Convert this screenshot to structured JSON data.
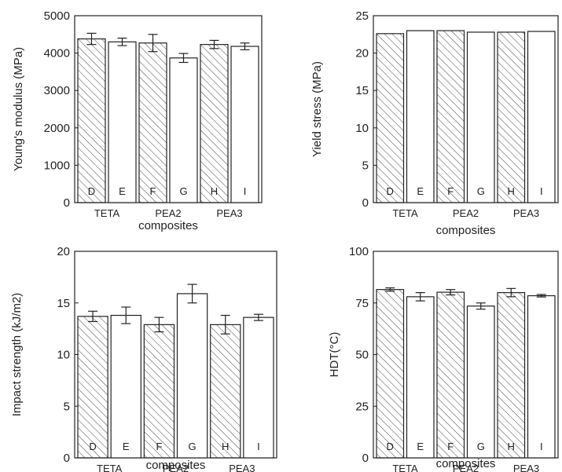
{
  "chart_data": [
    {
      "type": "bar",
      "ylabel": "Young's modulus (MPa)",
      "xlabel": "composites",
      "ylim": [
        0,
        5000
      ],
      "yticks": [
        0,
        1000,
        2000,
        3000,
        4000,
        5000
      ],
      "bar_letters": [
        "D",
        "E",
        "F",
        "G",
        "H",
        "I"
      ],
      "groups": [
        "TETA",
        "PEA2",
        "PEA3"
      ],
      "values": [
        4380,
        4300,
        4270,
        3870,
        4230,
        4180
      ],
      "errors": [
        150,
        100,
        230,
        120,
        110,
        90
      ],
      "hatched": [
        true,
        false,
        true,
        false,
        true,
        false
      ]
    },
    {
      "type": "bar",
      "ylabel": "Yield stress (MPa)",
      "xlabel": "composites",
      "ylim": [
        0,
        25
      ],
      "yticks": [
        0,
        5,
        10,
        15,
        20,
        25
      ],
      "bar_letters": [
        "D",
        "E",
        "F",
        "G",
        "H",
        "I"
      ],
      "groups": [
        "TETA",
        "PEA2",
        "PEA3"
      ],
      "values": [
        22.6,
        23.0,
        23.0,
        22.8,
        22.8,
        22.9
      ],
      "errors": [
        0,
        0,
        0,
        0,
        0,
        0
      ],
      "hatched": [
        true,
        false,
        true,
        false,
        true,
        false
      ]
    },
    {
      "type": "bar",
      "ylabel": "Impact strength (kJ/m2)",
      "xlabel": "composites",
      "ylim": [
        0,
        20
      ],
      "yticks": [
        0,
        5,
        10,
        15,
        20
      ],
      "bar_letters": [
        "D",
        "E",
        "F",
        "G",
        "H",
        "I"
      ],
      "groups": [
        "TETA",
        "PEA2",
        "PEA3"
      ],
      "values": [
        13.7,
        13.8,
        12.9,
        15.9,
        12.9,
        13.6
      ],
      "errors": [
        0.5,
        0.8,
        0.7,
        0.9,
        0.9,
        0.3
      ],
      "hatched": [
        true,
        false,
        true,
        false,
        true,
        false
      ]
    },
    {
      "type": "bar",
      "ylabel": "HDT(°C)",
      "xlabel": "composites",
      "ylim": [
        0,
        100
      ],
      "yticks": [
        0,
        25,
        50,
        75,
        100
      ],
      "bar_letters": [
        "D",
        "E",
        "F",
        "G",
        "H",
        "I"
      ],
      "groups": [
        "TETA",
        "PEA2",
        "PEA3"
      ],
      "values": [
        81.5,
        78.0,
        80.2,
        73.5,
        80.0,
        78.5
      ],
      "errors": [
        0.8,
        2.0,
        1.3,
        1.5,
        2.0,
        0.6
      ],
      "hatched": [
        true,
        false,
        true,
        false,
        true,
        false
      ]
    }
  ]
}
